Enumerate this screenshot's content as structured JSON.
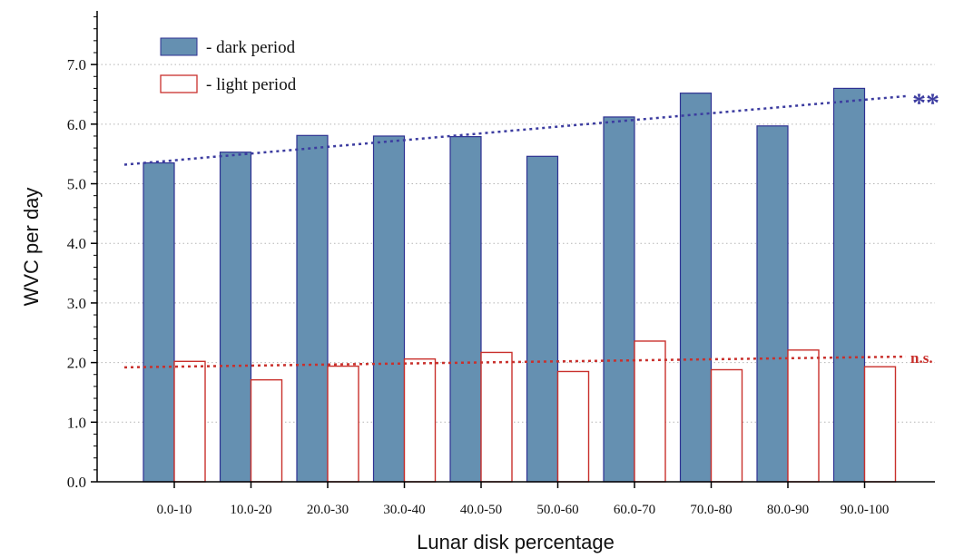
{
  "chart_data": {
    "type": "bar",
    "xlabel": "Lunar disk percentage",
    "ylabel": "WVC per day",
    "ylim": [
      0,
      7.9
    ],
    "yticks": [
      "0.0",
      "1.0",
      "2.0",
      "3.0",
      "4.0",
      "5.0",
      "6.0",
      "7.0"
    ],
    "grid": "horizontal dotted",
    "legend_position": "top-left",
    "categories": [
      "0.0-10",
      "10.0-20",
      "20.0-30",
      "30.0-40",
      "40.0-50",
      "50.0-60",
      "60.0-70",
      "70.0-80",
      "80.0-90",
      "90.0-100"
    ],
    "series": [
      {
        "name": "- dark period",
        "fill": "#6590b1",
        "stroke": "#2e3192",
        "values": [
          5.35,
          5.53,
          5.81,
          5.8,
          5.79,
          5.46,
          6.12,
          6.52,
          5.97,
          6.6
        ],
        "trend": {
          "start": 5.32,
          "end": 6.47,
          "color": "#3c3ca0",
          "significance": "**"
        }
      },
      {
        "name": "- light period",
        "fill": "#ffffff",
        "stroke": "#c9302c",
        "values": [
          2.02,
          1.71,
          1.94,
          2.06,
          2.17,
          1.85,
          2.36,
          1.88,
          2.21,
          1.93
        ],
        "trend": {
          "start": 1.92,
          "end": 2.1,
          "color": "#c9302c",
          "significance": "n.s."
        }
      }
    ]
  }
}
